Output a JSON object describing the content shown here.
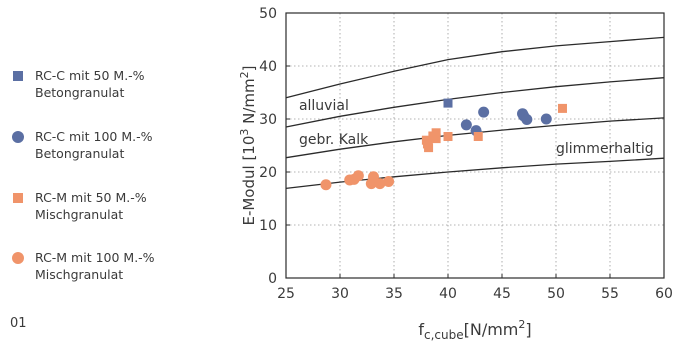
{
  "figure_label": "01",
  "legend": [
    {
      "line1": "RC-C mit 50 M.-%",
      "line2": "Betongranulat",
      "marker": "square",
      "color": "#5b6fa3"
    },
    {
      "line1": "RC-C mit 100 M.-%",
      "line2": "Betongranulat",
      "marker": "circle",
      "color": "#5b6fa3"
    },
    {
      "line1": "RC-M mit 50 M.-%",
      "line2": "Mischgranulat",
      "marker": "square",
      "color": "#f0946a"
    },
    {
      "line1": "RC-M mit 100 M.-%",
      "line2": "Mischgranulat",
      "marker": "circle",
      "color": "#f0946a"
    }
  ],
  "chart_data": {
    "type": "scatter",
    "xlim": [
      25,
      60
    ],
    "ylim": [
      0,
      50
    ],
    "xticks": [
      25,
      30,
      35,
      40,
      45,
      50,
      55,
      60
    ],
    "yticks": [
      0,
      10,
      20,
      30,
      40,
      50
    ],
    "xlabel": {
      "base": "f",
      "sub": "c,cube",
      "after": "[N/mm",
      "sup": "2",
      "close": "]"
    },
    "ylabel": {
      "before": "E-Modul [10",
      "sup1": "3",
      "mid": " N/mm",
      "sup2": "2",
      "close": "]"
    },
    "grid": true,
    "curves": [
      {
        "name": "alluvial",
        "points": [
          [
            25,
            34.0
          ],
          [
            30,
            36.6
          ],
          [
            35,
            39.0
          ],
          [
            40,
            41.2
          ],
          [
            45,
            42.7
          ],
          [
            50,
            43.8
          ],
          [
            55,
            44.6
          ],
          [
            60,
            45.4
          ]
        ]
      },
      {
        "name": "gebr. Kalk",
        "points": [
          [
            25,
            28.5
          ],
          [
            30,
            30.5
          ],
          [
            35,
            32.2
          ],
          [
            40,
            33.7
          ],
          [
            45,
            35.0
          ],
          [
            50,
            36.1
          ],
          [
            55,
            37.0
          ],
          [
            60,
            37.8
          ]
        ]
      },
      {
        "name": "glimmerhaltig",
        "points": [
          [
            25,
            22.7
          ],
          [
            30,
            24.3
          ],
          [
            35,
            25.7
          ],
          [
            40,
            26.9
          ],
          [
            45,
            27.9
          ],
          [
            50,
            28.8
          ],
          [
            55,
            29.6
          ],
          [
            60,
            30.2
          ]
        ]
      },
      {
        "name": "",
        "points": [
          [
            25,
            16.9
          ],
          [
            30,
            18.1
          ],
          [
            35,
            19.1
          ],
          [
            40,
            20.0
          ],
          [
            45,
            20.8
          ],
          [
            50,
            21.5
          ],
          [
            55,
            22.0
          ],
          [
            60,
            22.6
          ]
        ]
      }
    ],
    "curve_labels": [
      {
        "text": "alluvial",
        "x": 26.2,
        "y": 31.7
      },
      {
        "text": "gebr. Kalk",
        "x": 26.2,
        "y": 25.3
      },
      {
        "text": "glimmerhaltig",
        "x": 50.0,
        "y": 23.6
      }
    ],
    "series": [
      {
        "name": "RC-C mit 50 M.-% Betongranulat",
        "marker": "square",
        "color": "#5b6fa3",
        "points": [
          [
            40.0,
            33.0
          ]
        ]
      },
      {
        "name": "RC-C mit 100 M.-% Betongranulat",
        "marker": "circle",
        "color": "#5b6fa3",
        "points": [
          [
            41.7,
            28.9
          ],
          [
            42.6,
            27.8
          ],
          [
            43.3,
            31.3
          ],
          [
            46.9,
            31.0
          ],
          [
            47.0,
            30.6
          ],
          [
            47.3,
            29.9
          ],
          [
            49.1,
            30.0
          ]
        ]
      },
      {
        "name": "RC-M mit 50 M.-% Mischgranulat",
        "marker": "square",
        "color": "#f0946a",
        "points": [
          [
            38.0,
            26.0
          ],
          [
            38.1,
            25.3
          ],
          [
            38.2,
            24.6
          ],
          [
            38.6,
            26.8
          ],
          [
            38.9,
            27.4
          ],
          [
            38.9,
            26.3
          ],
          [
            40.0,
            26.7
          ],
          [
            42.8,
            26.7
          ],
          [
            50.6,
            32.0
          ]
        ]
      },
      {
        "name": "RC-M mit 100 M.-% Mischgranulat",
        "marker": "circle",
        "color": "#f0946a",
        "points": [
          [
            28.7,
            17.6
          ],
          [
            30.9,
            18.5
          ],
          [
            31.3,
            18.6
          ],
          [
            31.7,
            19.3
          ],
          [
            32.9,
            17.8
          ],
          [
            33.1,
            19.1
          ],
          [
            33.7,
            17.8
          ],
          [
            34.5,
            18.2
          ]
        ]
      }
    ]
  }
}
